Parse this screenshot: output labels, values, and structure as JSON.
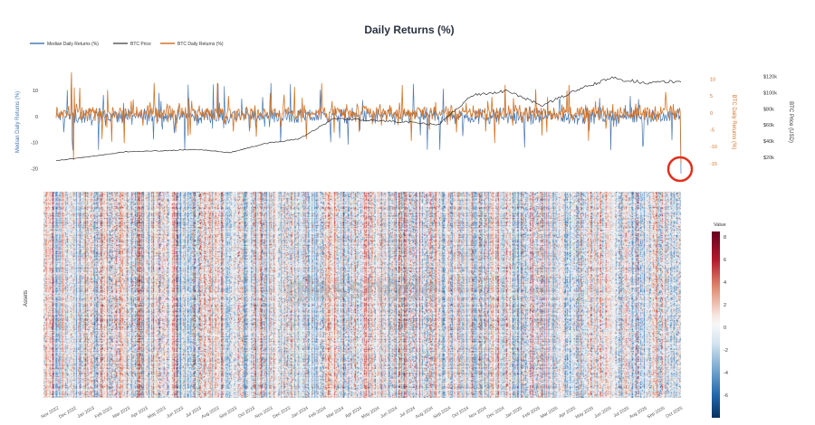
{
  "chart_data": [
    {
      "type": "line",
      "title": "Daily Returns (%)",
      "legend": [
        "Median Daily Returns (%)",
        "BTC Price",
        "BTC Daily Returns (%)"
      ],
      "legend_placement": "top-left",
      "x_range": [
        "Nov 2022",
        "Oct 2025"
      ],
      "series": [
        {
          "name": "Median Daily Returns (%)",
          "axis": "left",
          "color": "#4a78b0",
          "summary": {
            "typical_range": [
              -5,
              5
            ],
            "max_spike": 16,
            "min_spike": -23,
            "last": -22
          }
        },
        {
          "name": "BTC Daily Returns (%)",
          "axis": "right",
          "color": "#d0742a",
          "summary": {
            "typical_range": [
              -3,
              3
            ],
            "max_spike": 12,
            "min_spike": -15,
            "last": -15
          }
        },
        {
          "name": "BTC Price",
          "axis": "right2",
          "color": "#333333",
          "x": [
            "Nov 2022",
            "Jan 2023",
            "Mar 2023",
            "May 2023",
            "Jul 2023",
            "Sep 2023",
            "Nov 2023",
            "Jan 2024",
            "Mar 2024",
            "May 2024",
            "Jul 2024",
            "Sep 2024",
            "Nov 2024",
            "Jan 2025",
            "Mar 2025",
            "May 2025",
            "Jul 2025",
            "Sep 2025",
            "Oct 2025"
          ],
          "values": [
            16000,
            21000,
            27000,
            28000,
            30000,
            26000,
            37000,
            43000,
            68000,
            66000,
            64000,
            60000,
            97000,
            102000,
            84000,
            103000,
            118000,
            112000,
            114000
          ]
        }
      ],
      "left_axis": {
        "label": "Median Daily Returns (%)",
        "ticks": [
          10,
          0,
          -10,
          -20
        ],
        "ylim": [
          -22,
          17
        ]
      },
      "right_axis": {
        "label": "BTC Daily Returns (%)",
        "ticks": [
          10,
          5,
          0,
          -5,
          -10,
          -15
        ],
        "ylim": [
          -18,
          12
        ]
      },
      "right_axis2": {
        "label": "BTC Price (USD)",
        "ticks": [
          "$120k",
          "$100k",
          "$80k",
          "$60k",
          "$40k",
          "$20k"
        ],
        "tick_values": [
          120000,
          100000,
          80000,
          60000,
          40000,
          20000
        ],
        "ylim": [
          0,
          125000
        ]
      },
      "annotation": "red circle around the final drop at Oct 2025"
    },
    {
      "type": "heatmap",
      "ylabel": "Assets",
      "colorbar": {
        "title": "Value",
        "ticks": [
          8,
          6,
          4,
          2,
          0,
          -2,
          -4,
          -6
        ],
        "range": [
          -8,
          8.5
        ]
      },
      "x_ticks": [
        "Nov 2022",
        "Dec 2022",
        "Jan 2023",
        "Feb 2023",
        "Mar 2023",
        "Apr 2023",
        "May 2023",
        "Jun 2023",
        "Jul 2023",
        "Aug 2023",
        "Sep 2023",
        "Oct 2023",
        "Nov 2023",
        "Dec 2023",
        "Jan 2024",
        "Feb 2024",
        "Mar 2024",
        "Apr 2024",
        "May 2024",
        "Jun 2024",
        "Jul 2024",
        "Aug 2024",
        "Sep 2024",
        "Oct 2024",
        "Nov 2024",
        "Dec 2024",
        "Jan 2025",
        "Feb 2025",
        "Mar 2025",
        "Apr 2025",
        "May 2025",
        "Jun 2025",
        "Jul 2025",
        "Aug 2025",
        "Sep 2025",
        "Oct 2025"
      ],
      "watermark": "glassnode"
    }
  ]
}
